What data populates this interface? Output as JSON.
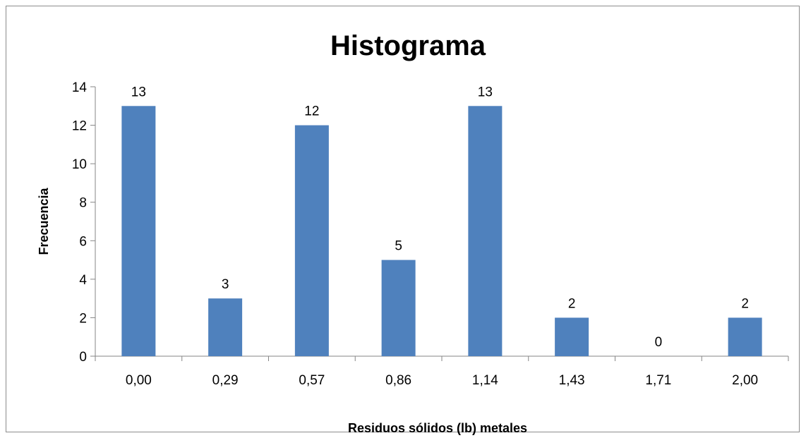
{
  "chart_data": {
    "type": "bar",
    "title": "Histograma",
    "xlabel": "Residuos sólidos (lb) metales",
    "ylabel": "Frecuencia",
    "categories": [
      "0,00",
      "0,29",
      "0,57",
      "0,86",
      "1,14",
      "1,43",
      "1,71",
      "2,00"
    ],
    "values": [
      13,
      3,
      12,
      5,
      13,
      2,
      0,
      2
    ],
    "ylim": [
      0,
      14
    ],
    "yticks": [
      "0",
      "2",
      "4",
      "6",
      "8",
      "10",
      "12",
      "14"
    ],
    "grid": false,
    "legend": "none",
    "bar_color": "#4F81BD"
  }
}
